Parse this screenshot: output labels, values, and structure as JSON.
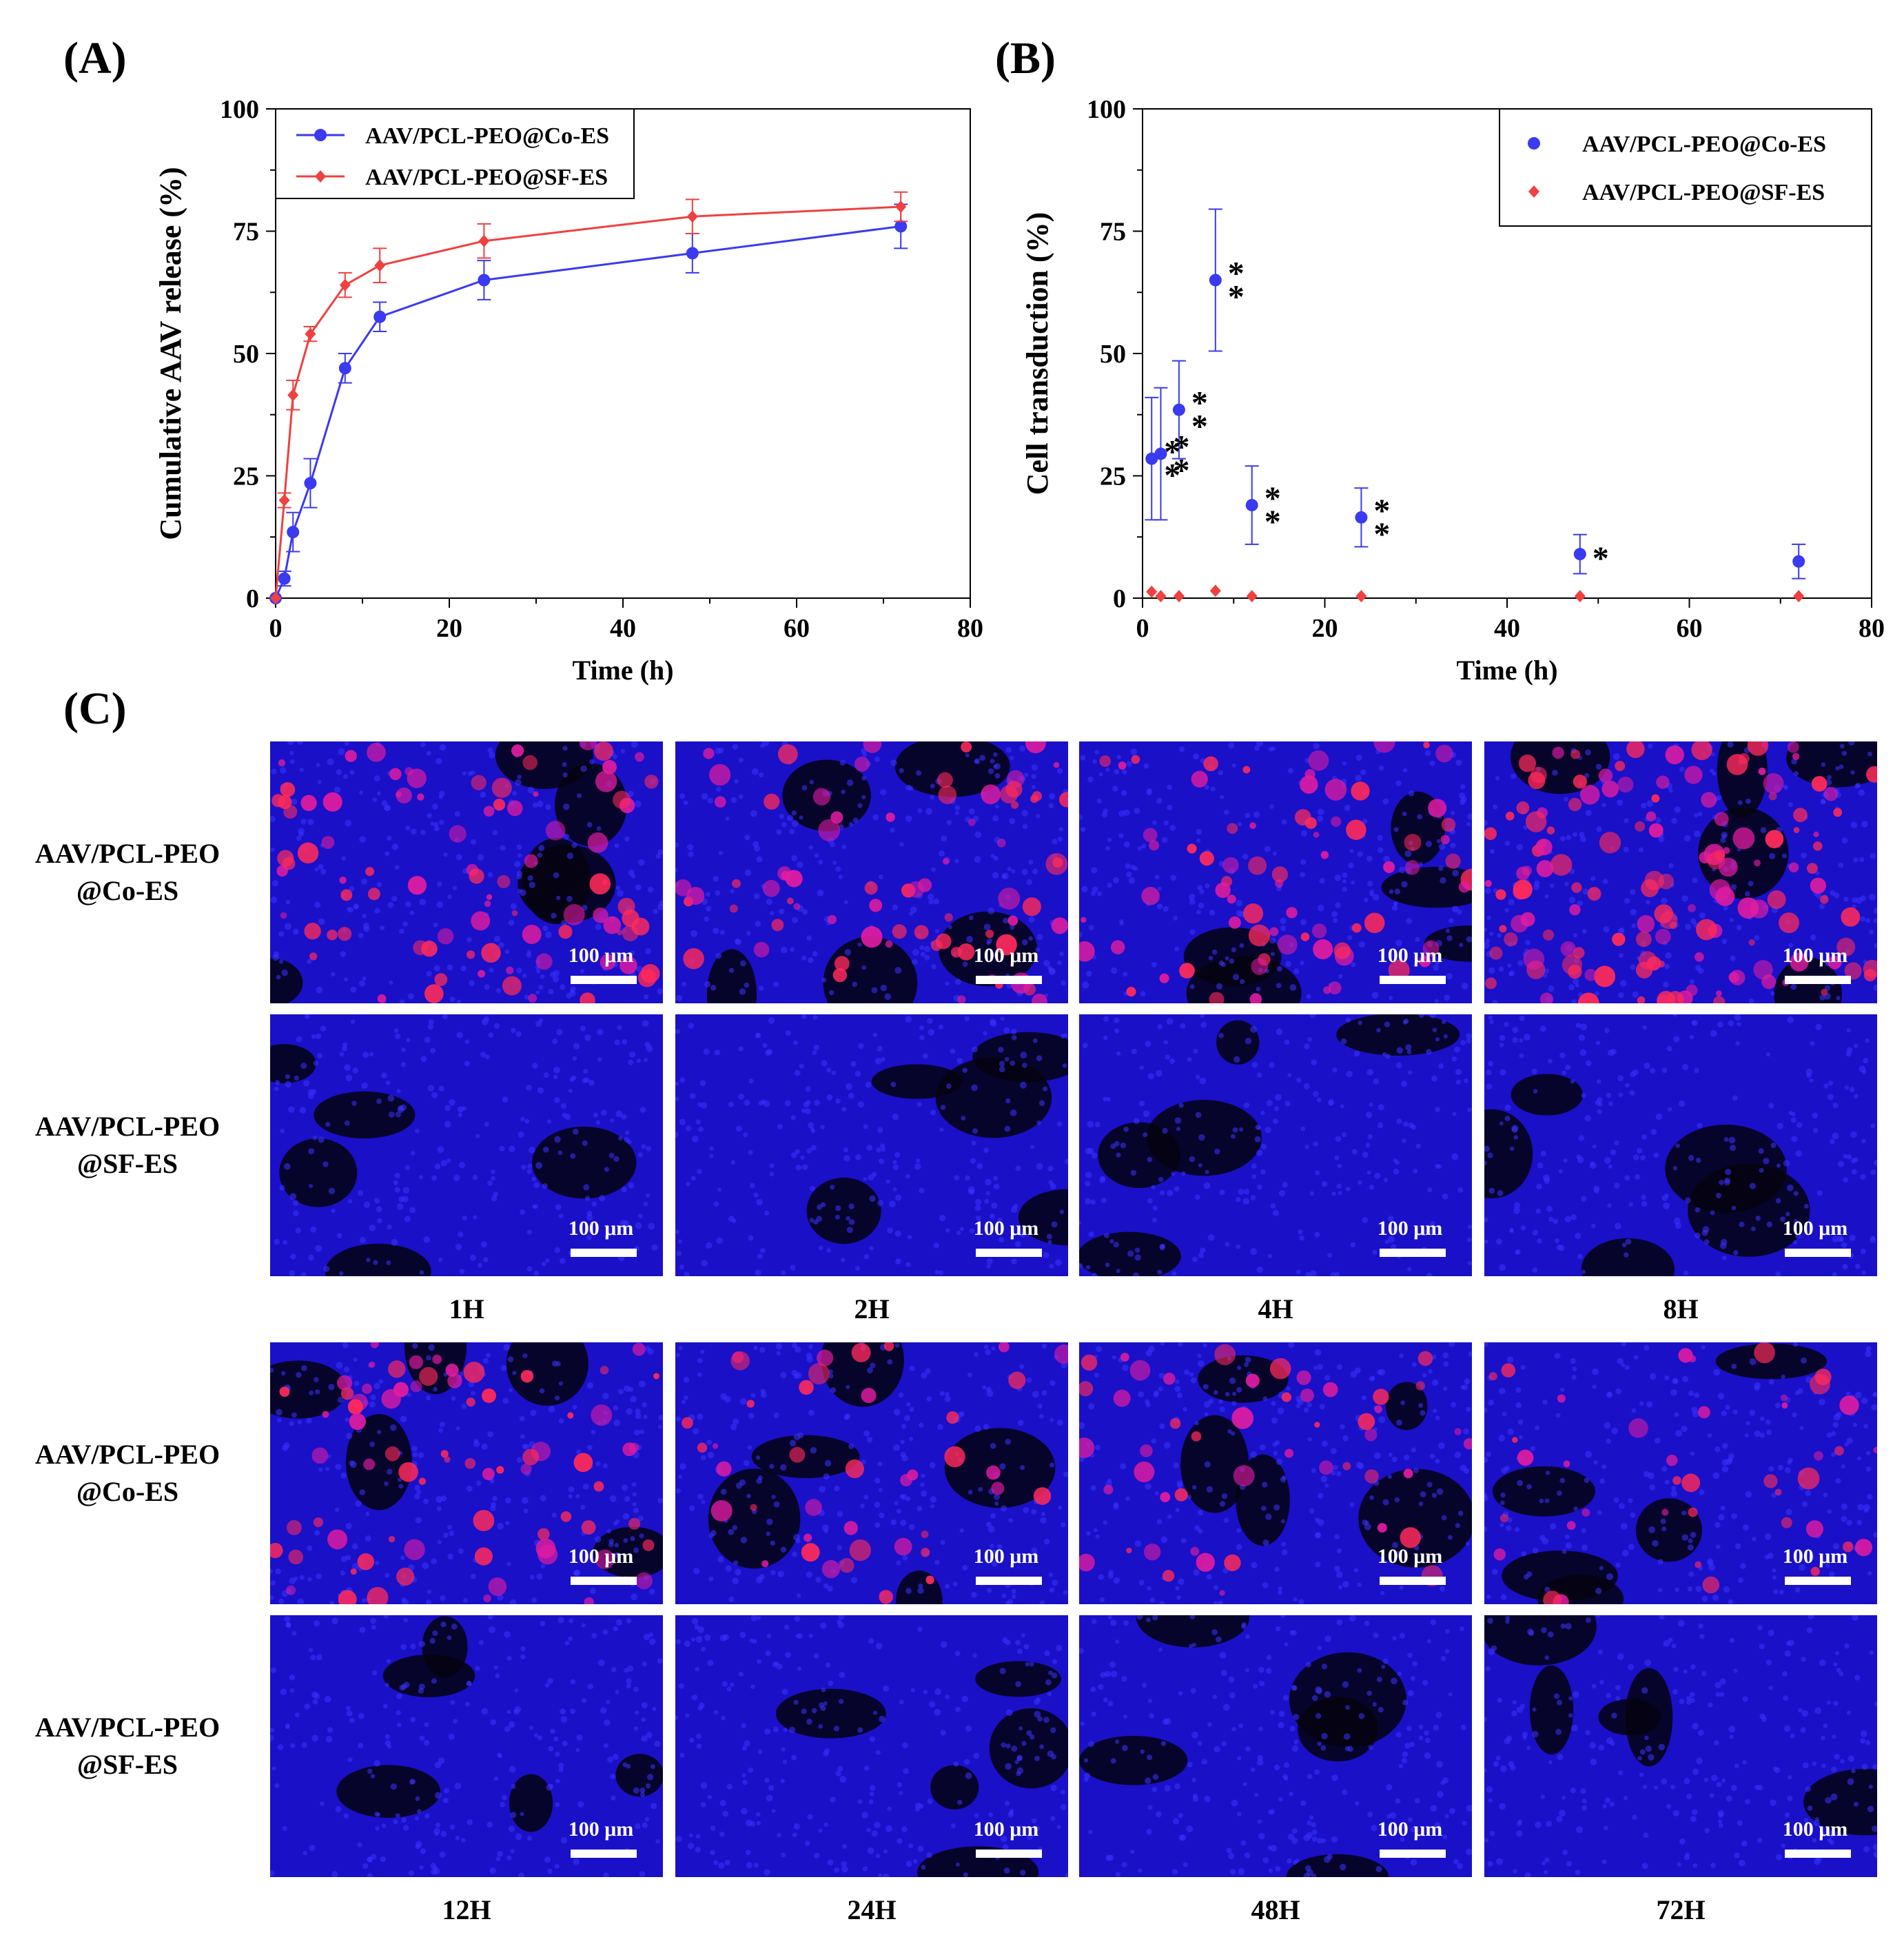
{
  "panels": {
    "a": "(A)",
    "b": "(B)",
    "c": "(C)"
  },
  "chart_data": [
    {
      "type": "line",
      "panel": "(A)",
      "xlabel": "Time (h)",
      "ylabel": "Cumulative AAV release  (%)",
      "xlim": [
        0,
        80
      ],
      "ylim": [
        0,
        100
      ],
      "xticks": [
        0,
        20,
        40,
        60,
        80
      ],
      "yticks": [
        0,
        25,
        50,
        75,
        100
      ],
      "legend_position": "top-left",
      "grid": false,
      "series": [
        {
          "name": "AAV/PCL-PEO@Co-ES",
          "color": "#3a3af0",
          "marker": "circle",
          "x": [
            0,
            1,
            2,
            4,
            8,
            12,
            24,
            48,
            72
          ],
          "y": [
            0,
            4,
            13.5,
            23.5,
            47,
            57.5,
            65,
            70.5,
            76
          ],
          "err": [
            0,
            1.5,
            4,
            5,
            3,
            3,
            4,
            4,
            4.5
          ]
        },
        {
          "name": "AAV/PCL-PEO@SF-ES",
          "color": "#f04040",
          "marker": "diamond",
          "x": [
            0,
            1,
            2,
            4,
            8,
            12,
            24,
            48,
            72
          ],
          "y": [
            0,
            20,
            41.5,
            54,
            64,
            68,
            73,
            78,
            80
          ],
          "err": [
            0,
            1.5,
            3,
            1.5,
            2.5,
            3.5,
            3.5,
            3.5,
            3
          ]
        }
      ]
    },
    {
      "type": "scatter",
      "panel": "(B)",
      "xlabel": "Time (h)",
      "ylabel": "Cell transduction (%)",
      "xlim": [
        0,
        80
      ],
      "ylim": [
        0,
        100
      ],
      "xticks": [
        0,
        20,
        40,
        60,
        80
      ],
      "yticks": [
        0,
        25,
        50,
        75,
        100
      ],
      "legend_position": "top-right",
      "grid": false,
      "series": [
        {
          "name": "AAV/PCL-PEO@Co-ES",
          "color": "#3a3af0",
          "marker": "circle",
          "x": [
            1,
            2,
            4,
            8,
            12,
            24,
            48,
            72
          ],
          "y": [
            28.5,
            29.5,
            38.5,
            65,
            19,
            16.5,
            9,
            7.5
          ],
          "err": [
            12.5,
            13.5,
            10,
            14.5,
            8,
            6,
            4,
            3.5
          ]
        },
        {
          "name": "AAV/PCL-PEO@SF-ES",
          "color": "#f04040",
          "marker": "diamond",
          "x": [
            1,
            2,
            4,
            8,
            12,
            24,
            48,
            72
          ],
          "y": [
            1.3,
            0.4,
            0.4,
            1.5,
            0.4,
            0.4,
            0.4,
            0.4
          ],
          "err": [
            0,
            0,
            0,
            0,
            0,
            0,
            0,
            0
          ]
        }
      ],
      "annotations": [
        {
          "x": 1,
          "text": "**"
        },
        {
          "x": 2,
          "text": "**"
        },
        {
          "x": 4,
          "text": "**"
        },
        {
          "x": 8,
          "text": "**"
        },
        {
          "x": 12,
          "text": "**"
        },
        {
          "x": 24,
          "text": "**"
        },
        {
          "x": 48,
          "text": "*"
        }
      ]
    }
  ],
  "microscopy": {
    "scale_bar_label": "100 μm",
    "blocks": [
      {
        "rows": [
          "AAV/PCL-PEO\n@Co-ES",
          "AAV/PCL-PEO\n@SF-ES"
        ],
        "times": [
          "1H",
          "2H",
          "4H",
          "8H"
        ]
      },
      {
        "rows": [
          "AAV/PCL-PEO\n@Co-ES",
          "AAV/PCL-PEO\n@SF-ES"
        ],
        "times": [
          "12H",
          "24H",
          "48H",
          "72H"
        ]
      }
    ],
    "red_intensity": [
      [
        0.55,
        0.45,
        0.45,
        0.85
      ],
      [
        0.45,
        0.25,
        0.3,
        0.25
      ]
    ]
  }
}
